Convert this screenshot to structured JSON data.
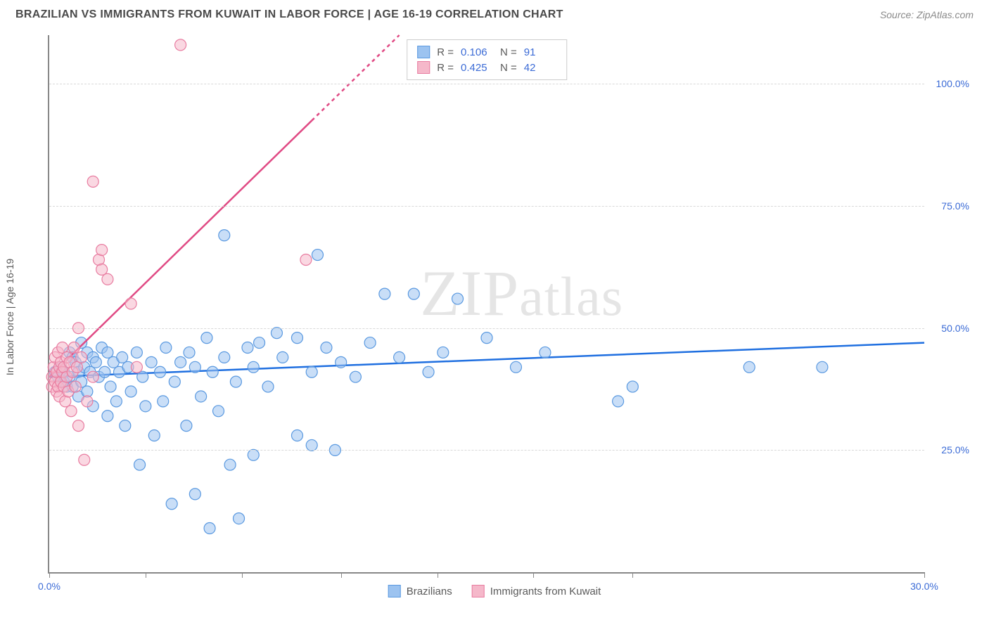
{
  "title": "BRAZILIAN VS IMMIGRANTS FROM KUWAIT IN LABOR FORCE | AGE 16-19 CORRELATION CHART",
  "source_label": "Source: ZipAtlas.com",
  "ylabel": "In Labor Force | Age 16-19",
  "watermark": "ZIPatlas",
  "chart": {
    "type": "scatter",
    "xlim": [
      0,
      30
    ],
    "ylim": [
      0,
      110
    ],
    "xtick_positions": [
      0,
      3.3,
      6.6,
      10,
      13.3,
      16.6,
      20,
      30
    ],
    "xtick_labels_shown": {
      "0": "0.0%",
      "30": "30.0%"
    },
    "ytick_positions": [
      25,
      50,
      75,
      100
    ],
    "ytick_labels": [
      "25.0%",
      "50.0%",
      "75.0%",
      "100.0%"
    ],
    "grid_color": "#dcdcdc",
    "axis_color": "#888888",
    "background_color": "#ffffff",
    "label_color": "#3b6bd6",
    "marker_radius": 8,
    "marker_opacity": 0.55,
    "series": [
      {
        "name": "Brazilians",
        "color_fill": "#9cc3f0",
        "color_stroke": "#5a99e0",
        "R": 0.106,
        "N": 91,
        "trend": {
          "x1": 0,
          "y1": 40,
          "x2": 30,
          "y2": 47,
          "stroke": "#1f6fe0",
          "width": 2.5,
          "dash_after_x": null
        },
        "points": [
          [
            0.2,
            41
          ],
          [
            0.3,
            40
          ],
          [
            0.4,
            42
          ],
          [
            0.5,
            39
          ],
          [
            0.5,
            41
          ],
          [
            0.6,
            38
          ],
          [
            0.7,
            45
          ],
          [
            0.7,
            40
          ],
          [
            0.8,
            44
          ],
          [
            0.8,
            38
          ],
          [
            0.9,
            43
          ],
          [
            1.0,
            41
          ],
          [
            1.0,
            36
          ],
          [
            1.1,
            47
          ],
          [
            1.1,
            39
          ],
          [
            1.2,
            42
          ],
          [
            1.3,
            45
          ],
          [
            1.3,
            37
          ],
          [
            1.4,
            41
          ],
          [
            1.5,
            44
          ],
          [
            1.5,
            34
          ],
          [
            1.6,
            43
          ],
          [
            1.7,
            40
          ],
          [
            1.8,
            46
          ],
          [
            1.9,
            41
          ],
          [
            2.0,
            32
          ],
          [
            2.0,
            45
          ],
          [
            2.1,
            38
          ],
          [
            2.2,
            43
          ],
          [
            2.3,
            35
          ],
          [
            2.4,
            41
          ],
          [
            2.5,
            44
          ],
          [
            2.6,
            30
          ],
          [
            2.7,
            42
          ],
          [
            2.8,
            37
          ],
          [
            3.0,
            45
          ],
          [
            3.1,
            22
          ],
          [
            3.2,
            40
          ],
          [
            3.3,
            34
          ],
          [
            3.5,
            43
          ],
          [
            3.6,
            28
          ],
          [
            3.8,
            41
          ],
          [
            3.9,
            35
          ],
          [
            4.0,
            46
          ],
          [
            4.2,
            14
          ],
          [
            4.3,
            39
          ],
          [
            4.5,
            43
          ],
          [
            4.7,
            30
          ],
          [
            4.8,
            45
          ],
          [
            5.0,
            16
          ],
          [
            5.0,
            42
          ],
          [
            5.2,
            36
          ],
          [
            5.4,
            48
          ],
          [
            5.5,
            9
          ],
          [
            5.6,
            41
          ],
          [
            5.8,
            33
          ],
          [
            6.0,
            69
          ],
          [
            6.0,
            44
          ],
          [
            6.2,
            22
          ],
          [
            6.4,
            39
          ],
          [
            6.5,
            11
          ],
          [
            6.8,
            46
          ],
          [
            7.0,
            42
          ],
          [
            7.0,
            24
          ],
          [
            7.2,
            47
          ],
          [
            7.5,
            38
          ],
          [
            7.8,
            49
          ],
          [
            8.0,
            44
          ],
          [
            8.5,
            48
          ],
          [
            8.5,
            28
          ],
          [
            9.0,
            41
          ],
          [
            9.0,
            26
          ],
          [
            9.2,
            65
          ],
          [
            9.5,
            46
          ],
          [
            9.8,
            25
          ],
          [
            10.0,
            43
          ],
          [
            10.5,
            40
          ],
          [
            11.0,
            47
          ],
          [
            11.5,
            57
          ],
          [
            12.0,
            44
          ],
          [
            12.5,
            57
          ],
          [
            13.0,
            41
          ],
          [
            13.5,
            45
          ],
          [
            14.0,
            56
          ],
          [
            15.0,
            48
          ],
          [
            16.0,
            42
          ],
          [
            17.0,
            45
          ],
          [
            19.5,
            35
          ],
          [
            20.0,
            38
          ],
          [
            24.0,
            42
          ],
          [
            26.5,
            42
          ]
        ]
      },
      {
        "name": "Immigrants from Kuwait",
        "color_fill": "#f5b8ca",
        "color_stroke": "#e87ca0",
        "R": 0.425,
        "N": 42,
        "trend": {
          "x1": 0,
          "y1": 40,
          "x2": 12,
          "y2": 110,
          "stroke": "#e04a84",
          "width": 2.5,
          "dash_after_x": 9
        },
        "points": [
          [
            0.1,
            40
          ],
          [
            0.1,
            38
          ],
          [
            0.15,
            42
          ],
          [
            0.2,
            39
          ],
          [
            0.2,
            44
          ],
          [
            0.25,
            37
          ],
          [
            0.25,
            41
          ],
          [
            0.3,
            45
          ],
          [
            0.3,
            38
          ],
          [
            0.35,
            42
          ],
          [
            0.35,
            36
          ],
          [
            0.4,
            43
          ],
          [
            0.4,
            39
          ],
          [
            0.45,
            41
          ],
          [
            0.45,
            46
          ],
          [
            0.5,
            38
          ],
          [
            0.5,
            42
          ],
          [
            0.55,
            35
          ],
          [
            0.6,
            44
          ],
          [
            0.6,
            40
          ],
          [
            0.65,
            37
          ],
          [
            0.7,
            43
          ],
          [
            0.75,
            33
          ],
          [
            0.8,
            41
          ],
          [
            0.85,
            46
          ],
          [
            0.9,
            38
          ],
          [
            0.95,
            42
          ],
          [
            1.0,
            50
          ],
          [
            1.0,
            30
          ],
          [
            1.1,
            44
          ],
          [
            1.2,
            23
          ],
          [
            1.3,
            35
          ],
          [
            1.5,
            80
          ],
          [
            1.5,
            40
          ],
          [
            1.7,
            64
          ],
          [
            1.8,
            62
          ],
          [
            1.8,
            66
          ],
          [
            2.0,
            60
          ],
          [
            2.8,
            55
          ],
          [
            3.0,
            42
          ],
          [
            4.5,
            108
          ],
          [
            8.8,
            64
          ]
        ]
      }
    ]
  },
  "stats_legend": [
    {
      "swatch_fill": "#9cc3f0",
      "swatch_stroke": "#5a99e0",
      "r_label": "R =",
      "r_val": "0.106",
      "n_label": "N =",
      "n_val": "91"
    },
    {
      "swatch_fill": "#f5b8ca",
      "swatch_stroke": "#e87ca0",
      "r_label": "R =",
      "r_val": "0.425",
      "n_label": "N =",
      "n_val": "42"
    }
  ],
  "bottom_legend": [
    {
      "swatch_fill": "#9cc3f0",
      "swatch_stroke": "#5a99e0",
      "label": "Brazilians"
    },
    {
      "swatch_fill": "#f5b8ca",
      "swatch_stroke": "#e87ca0",
      "label": "Immigrants from Kuwait"
    }
  ]
}
